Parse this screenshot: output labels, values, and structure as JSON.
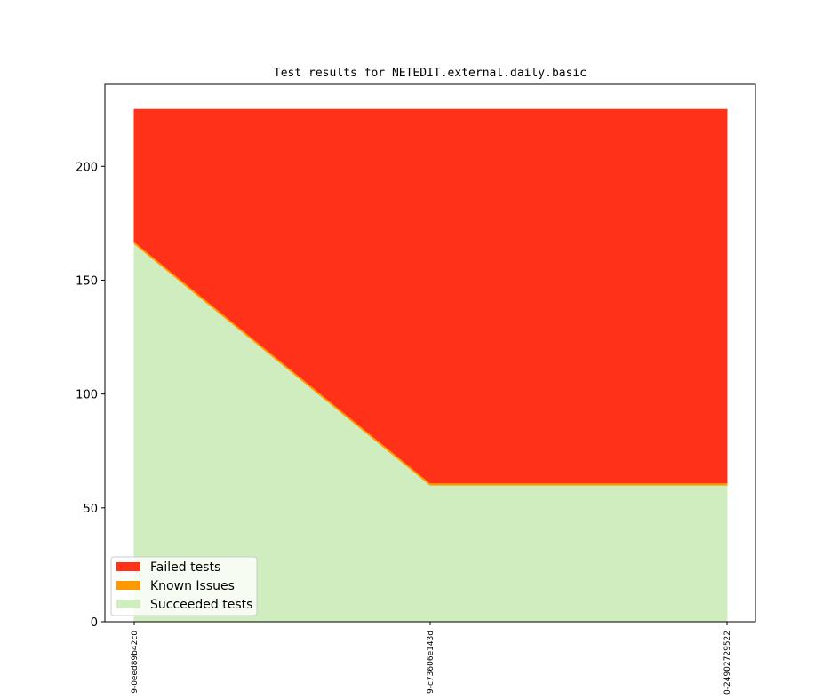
{
  "chart_data": {
    "type": "area",
    "stacked": true,
    "title": "Test results for NETEDIT.external.daily.basic",
    "xlabel": "",
    "ylabel": "",
    "categories": [
      "9-0eed89b42c0",
      "9-c73606e143d",
      "0-24902729522"
    ],
    "ylim": [
      0,
      236
    ],
    "yticks": [
      0,
      50,
      100,
      150,
      200
    ],
    "grid": false,
    "legend_position": "lower-left",
    "series": [
      {
        "name": "Succeeded tests",
        "color": "#cfedbf",
        "values": [
          166,
          60,
          60
        ]
      },
      {
        "name": "Known Issues",
        "color": "#ff9900",
        "values": [
          1,
          1,
          1
        ]
      },
      {
        "name": "Failed tests",
        "color": "#ff3119",
        "values": [
          58,
          164,
          164
        ]
      }
    ],
    "legend_order": [
      "Failed tests",
      "Known Issues",
      "Succeeded tests"
    ]
  }
}
